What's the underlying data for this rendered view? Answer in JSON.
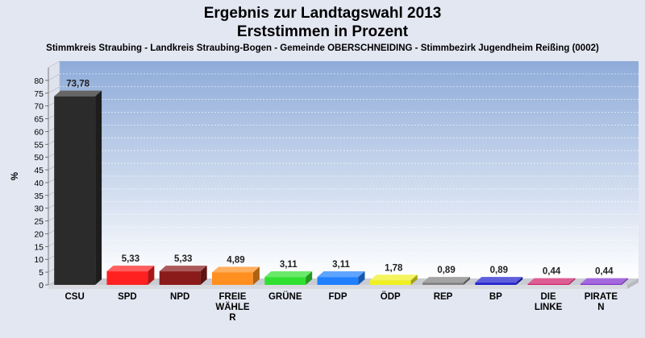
{
  "chart_data": {
    "type": "bar",
    "title_lines": [
      "Ergebnis zur Landtagswahl 2013",
      "Erststimmen in Prozent"
    ],
    "subtitle": "Stimmkreis Straubing - Landkreis Straubing-Bogen - Gemeinde OBERSCHNEIDING - Stimmbezirk Jugendheim Reißing (0002)",
    "ylabel": "%",
    "xlabel": "",
    "ylim": [
      0,
      85
    ],
    "yticks": [
      0,
      5,
      10,
      15,
      20,
      25,
      30,
      35,
      40,
      45,
      50,
      55,
      60,
      65,
      70,
      75,
      80
    ],
    "grid": true,
    "categories": [
      "CSU",
      "SPD",
      "NPD",
      "FREIE WÄHLER",
      "GRÜNE",
      "FDP",
      "ÖDP",
      "REP",
      "BP",
      "DIE LINKE",
      "PIRATEN"
    ],
    "category_label_lines": [
      [
        "CSU"
      ],
      [
        "SPD"
      ],
      [
        "NPD"
      ],
      [
        "FREIE",
        "WÄHLE",
        "R"
      ],
      [
        "GRÜNE"
      ],
      [
        "FDP"
      ],
      [
        "ÖDP"
      ],
      [
        "REP"
      ],
      [
        "BP"
      ],
      [
        "DIE",
        "LINKE"
      ],
      [
        "PIRATE",
        "N"
      ]
    ],
    "values": [
      73.78,
      5.33,
      5.33,
      4.89,
      3.11,
      3.11,
      1.78,
      0.89,
      0.89,
      0.44,
      0.44
    ],
    "value_labels": [
      "73,78",
      "5,33",
      "5,33",
      "4,89",
      "3,11",
      "3,11",
      "1,78",
      "0,89",
      "0,89",
      "0,44",
      "0,44"
    ],
    "colors": [
      "#2b2b2b",
      "#ff2020",
      "#8b1a1a",
      "#ff9020",
      "#30e030",
      "#2080ff",
      "#f0f020",
      "#808080",
      "#2020d0",
      "#d0206a",
      "#8030d0"
    ]
  }
}
